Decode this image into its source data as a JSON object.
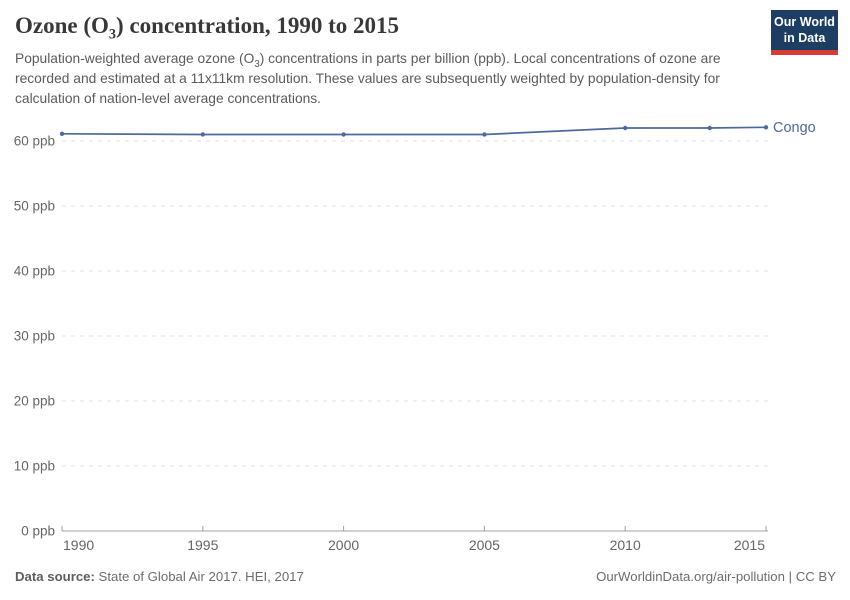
{
  "header": {
    "title": {
      "pre": "Ozone (O",
      "sub": "3",
      "post": ") concentration, 1990 to 2015"
    },
    "subtitle": {
      "pre": "Population-weighted average ozone (O",
      "sub": "3",
      "post": ") concentrations in parts per billion (ppb). Local concentrations of ozone are recorded and estimated at a 11x11km resolution. These values are subsequently weighted by population-density for calculation of nation-level average concentrations."
    }
  },
  "logo": {
    "line1": "Our World",
    "line2": "in Data"
  },
  "footer": {
    "source_label": "Data source:",
    "source_text": " State of Global Air 2017. HEI, 2017",
    "credit": "OurWorldinData.org/air-pollution | CC BY"
  },
  "colors": {
    "series": "#4c6a9c",
    "grid": "#e0e0e0",
    "axis": "#a0a0a0",
    "tick_label": "#666666",
    "logo_bg": "#1d3d63",
    "logo_accent": "#d73c34"
  },
  "chart_data": {
    "type": "line",
    "title": "Ozone (O3) concentration, 1990 to 2015",
    "xlabel": "",
    "ylabel": "ppb",
    "xlim": [
      1990,
      2015
    ],
    "ylim": [
      0,
      63
    ],
    "x_ticks": [
      1990,
      1995,
      2000,
      2005,
      2010,
      2015
    ],
    "y_ticks": [
      0,
      10,
      20,
      30,
      40,
      50,
      60
    ],
    "y_tick_format": "{v} ppb",
    "grid": "horizontal-dashed",
    "legend_position": "end-of-line",
    "series": [
      {
        "name": "Congo",
        "color": "#4c6a9c",
        "x": [
          1990,
          1995,
          2000,
          2005,
          2010,
          2013,
          2015
        ],
        "values": [
          61.1,
          61.0,
          61.0,
          61.0,
          62.0,
          62.0,
          62.1
        ]
      }
    ]
  }
}
